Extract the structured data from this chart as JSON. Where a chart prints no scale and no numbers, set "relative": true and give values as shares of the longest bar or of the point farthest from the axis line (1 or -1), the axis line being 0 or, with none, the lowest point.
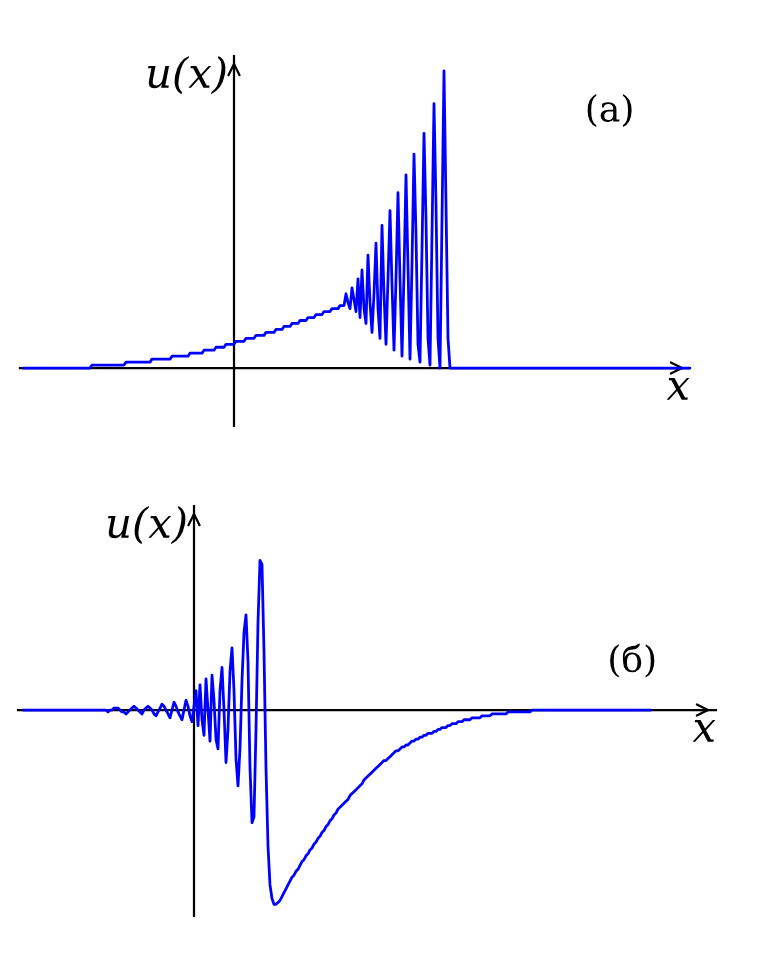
{
  "chart_data": [
    {
      "type": "line",
      "relative": true,
      "xlabel": "x",
      "ylabel": "u(x)",
      "annotations": [
        "(а)"
      ],
      "categories": [
        null,
        null,
        null,
        null,
        null,
        null,
        null,
        null,
        null,
        null,
        null,
        null,
        null,
        null,
        null,
        null,
        null,
        null,
        null,
        null,
        null,
        null,
        null,
        null,
        null,
        null,
        null,
        null,
        null,
        null,
        null,
        null,
        null,
        null,
        null,
        null,
        null,
        null,
        null,
        null,
        null,
        null,
        null,
        null,
        null,
        null,
        null,
        null,
        null,
        null,
        null,
        null,
        null,
        null,
        null,
        null,
        null,
        null,
        null,
        null,
        null,
        null,
        null,
        null,
        null,
        null,
        null,
        null,
        null,
        null,
        null,
        null,
        null,
        null,
        null,
        null,
        null,
        null,
        null,
        null,
        null,
        null,
        null,
        null,
        null,
        null,
        null,
        null,
        null,
        null,
        null,
        null,
        null,
        null,
        null,
        null,
        null,
        null,
        null,
        null,
        null,
        null,
        null,
        null,
        null,
        null,
        null,
        null,
        null,
        null,
        null,
        null,
        null,
        null,
        null,
        null,
        null,
        null,
        null,
        null,
        null,
        null,
        null,
        null,
        null,
        null,
        null,
        null,
        null,
        null,
        null,
        null,
        null,
        null,
        null,
        null,
        null,
        null,
        null,
        null,
        null,
        null,
        null,
        null,
        null,
        null,
        null,
        null,
        null,
        null,
        null,
        null,
        null,
        null,
        null,
        null,
        null,
        null,
        null,
        null,
        null,
        null,
        null,
        null,
        null,
        null,
        null,
        null,
        null,
        null,
        null,
        null,
        null,
        null,
        null,
        null,
        null,
        null,
        null,
        null,
        null,
        null,
        null,
        null,
        null,
        null,
        null,
        null,
        null,
        null,
        null,
        null,
        null,
        null,
        null,
        null,
        null,
        null,
        null,
        null,
        null,
        null,
        null,
        null,
        null,
        null,
        null,
        null,
        null,
        null,
        null,
        null,
        null,
        null,
        null,
        null,
        null,
        null,
        null,
        null,
        null,
        null,
        null,
        null,
        null,
        null,
        null,
        null,
        null,
        null,
        null,
        null,
        null,
        null,
        null,
        null,
        null,
        null,
        null,
        null,
        null,
        null,
        null,
        null,
        null,
        null,
        null,
        null,
        null,
        null,
        null,
        null,
        null,
        null,
        null,
        null,
        null,
        null,
        null,
        null,
        null,
        null,
        null,
        null,
        null,
        null,
        null,
        null,
        null,
        null,
        null,
        null,
        null,
        null,
        null,
        null,
        null,
        null,
        null,
        null,
        null,
        null,
        null,
        null,
        null,
        null,
        null,
        null,
        null,
        null,
        null,
        null,
        null,
        null,
        null,
        null,
        null,
        null,
        null,
        null,
        null,
        null,
        null,
        null,
        null,
        null,
        null,
        null,
        null,
        null,
        null,
        null,
        null,
        null,
        null,
        null,
        null,
        null,
        null,
        null,
        null,
        null,
        null,
        null,
        null,
        null,
        null,
        null,
        null,
        null,
        null,
        null,
        null,
        null
      ],
      "series": [
        {
          "color": "#0000ff",
          "values": [
            0,
            0,
            0,
            0,
            0,
            0,
            0,
            0,
            0,
            0,
            0,
            0,
            0,
            0,
            0,
            0,
            0,
            0,
            0,
            0,
            0,
            0,
            0,
            0,
            0,
            0,
            0,
            0,
            0,
            0,
            0,
            0,
            0,
            0,
            0.01,
            0.01,
            0.01,
            0.01,
            0.01,
            0.01,
            0.01,
            0.01,
            0.01,
            0.01,
            0.01,
            0.01,
            0.01,
            0.01,
            0.01,
            0.01,
            0.01,
            0.02,
            0.02,
            0.02,
            0.02,
            0.02,
            0.02,
            0.02,
            0.02,
            0.02,
            0.02,
            0.02,
            0.02,
            0.02,
            0.03,
            0.03,
            0.03,
            0.03,
            0.03,
            0.03,
            0.03,
            0.03,
            0.03,
            0.03,
            0.04,
            0.04,
            0.04,
            0.04,
            0.04,
            0.04,
            0.04,
            0.04,
            0.04,
            0.05,
            0.05,
            0.05,
            0.05,
            0.05,
            0.05,
            0.05,
            0.06,
            0.06,
            0.06,
            0.06,
            0.06,
            0.06,
            0.07,
            0.07,
            0.07,
            0.07,
            0.07,
            0.08,
            0.08,
            0.08,
            0.08,
            0.08,
            0.09,
            0.09,
            0.09,
            0.09,
            0.09,
            0.1,
            0.1,
            0.1,
            0.1,
            0.1,
            0.11,
            0.11,
            0.11,
            0.11,
            0.11,
            0.12,
            0.12,
            0.12,
            0.12,
            0.12,
            0.13,
            0.13,
            0.13,
            0.13,
            0.14,
            0.14,
            0.14,
            0.14,
            0.15,
            0.15,
            0.15,
            0.15,
            0.16,
            0.16,
            0.16,
            0.16,
            0.17,
            0.17,
            0.17,
            0.17,
            0.18,
            0.18,
            0.18,
            0.18,
            0.19,
            0.19,
            0.19,
            0.19,
            0.2,
            0.2,
            0.2,
            0.2,
            0.21,
            0.21,
            0.21,
            0.25,
            0.22,
            0.2,
            0.27,
            0.23,
            0.19,
            0.3,
            0.17,
            0.33,
            0.2,
            0.15,
            0.38,
            0.22,
            0.12,
            0.25,
            0.42,
            0.2,
            0.1,
            0.48,
            0.25,
            0.08,
            0.3,
            0.53,
            0.28,
            0.06,
            0.3,
            0.59,
            0.3,
            0.04,
            0.32,
            0.65,
            0.34,
            0.03,
            0.35,
            0.72,
            0.45,
            0.08,
            0.02,
            0.4,
            0.79,
            0.5,
            0.1,
            0.01,
            0.45,
            0.89,
            0.55,
            0.1,
            0,
            0.5,
            1.0,
            0.55,
            0.1,
            0,
            0,
            0,
            0,
            0,
            0,
            0,
            0,
            0,
            0,
            0,
            0,
            0,
            0,
            0,
            0,
            0,
            0,
            0,
            0,
            0,
            0,
            0,
            0,
            0,
            0,
            0,
            0,
            0,
            0,
            0,
            0,
            0,
            0,
            0,
            0,
            0,
            0,
            0,
            0,
            0,
            0,
            0,
            0,
            0,
            0,
            0,
            0,
            0,
            0,
            0,
            0,
            0,
            0,
            0,
            0,
            0,
            0,
            0,
            0,
            0,
            0,
            0,
            0,
            0,
            0,
            0,
            0,
            0,
            0,
            0,
            0,
            0,
            0,
            0,
            0,
            0,
            0,
            0,
            0,
            0,
            0,
            0,
            0,
            0,
            0,
            0,
            0,
            0,
            0,
            0,
            0,
            0,
            0,
            0,
            0,
            0,
            0,
            0,
            0,
            0,
            0,
            0,
            0,
            0,
            0,
            0,
            0,
            0,
            0,
            0,
            0,
            0,
            0,
            0,
            0,
            0,
            0,
            0,
            0,
            0
          ]
        }
      ]
    },
    {
      "type": "line",
      "relative": true,
      "xlabel": "x",
      "ylabel": "u(x)",
      "annotations": [
        "(б)"
      ],
      "categories": [
        null,
        null,
        null,
        null,
        null,
        null,
        null,
        null,
        null,
        null,
        null,
        null,
        null,
        null,
        null,
        null,
        null,
        null,
        null,
        null,
        null,
        null,
        null,
        null,
        null,
        null,
        null,
        null,
        null,
        null,
        null,
        null,
        null,
        null,
        null,
        null,
        null,
        null,
        null,
        null,
        null,
        null,
        null,
        null,
        null,
        null,
        null,
        null,
        null,
        null,
        null,
        null,
        null,
        null,
        null,
        null,
        null,
        null,
        null,
        null,
        null,
        null,
        null,
        null,
        null,
        null,
        null,
        null,
        null,
        null,
        null,
        null,
        null,
        null,
        null,
        null,
        null,
        null,
        null,
        null,
        null,
        null,
        null,
        null,
        null,
        null,
        null,
        null,
        null,
        null,
        null,
        null,
        null,
        null,
        null,
        null,
        null,
        null,
        null,
        null,
        null,
        null,
        null,
        null,
        null,
        null,
        null,
        null,
        null,
        null,
        null,
        null,
        null,
        null,
        null,
        null,
        null,
        null,
        null,
        null,
        null,
        null,
        null,
        null,
        null,
        null,
        null,
        null,
        null,
        null,
        null,
        null,
        null,
        null,
        null,
        null,
        null,
        null,
        null,
        null,
        null,
        null,
        null,
        null,
        null,
        null,
        null,
        null,
        null,
        null,
        null,
        null,
        null,
        null,
        null,
        null,
        null,
        null,
        null,
        null,
        null,
        null,
        null,
        null,
        null,
        null,
        null,
        null,
        null,
        null,
        null,
        null,
        null,
        null,
        null,
        null,
        null,
        null,
        null,
        null,
        null,
        null,
        null,
        null,
        null,
        null,
        null,
        null,
        null,
        null,
        null,
        null,
        null,
        null,
        null,
        null,
        null,
        null,
        null,
        null,
        null,
        null,
        null,
        null,
        null,
        null,
        null,
        null,
        null,
        null,
        null,
        null,
        null,
        null,
        null,
        null,
        null,
        null,
        null,
        null,
        null,
        null,
        null,
        null,
        null,
        null,
        null,
        null,
        null,
        null,
        null,
        null,
        null,
        null,
        null,
        null,
        null,
        null,
        null,
        null,
        null,
        null,
        null,
        null,
        null,
        null,
        null,
        null,
        null,
        null,
        null,
        null,
        null,
        null,
        null,
        null,
        null,
        null,
        null,
        null,
        null,
        null,
        null,
        null,
        null,
        null,
        null,
        null,
        null,
        null,
        null,
        null,
        null,
        null,
        null,
        null,
        null,
        null,
        null,
        null,
        null,
        null,
        null,
        null,
        null,
        null,
        null,
        null,
        null,
        null,
        null,
        null,
        null,
        null,
        null,
        null,
        null,
        null,
        null,
        null,
        null,
        null,
        null,
        null,
        null,
        null,
        null,
        null,
        null,
        null,
        null,
        null,
        null,
        null
      ],
      "series": [
        {
          "color": "#0000ff",
          "values": [
            0,
            0,
            0,
            0,
            0,
            0,
            0,
            0,
            0,
            0,
            0,
            0,
            0,
            0,
            0,
            0,
            0,
            0,
            0,
            0,
            0,
            0,
            0,
            0,
            0,
            0,
            0,
            0,
            0,
            0,
            0,
            0,
            0,
            0,
            0,
            0,
            0,
            0,
            0,
            0,
            0,
            0,
            -0.01,
            0,
            0,
            0.01,
            0.01,
            0.01,
            0,
            -0.01,
            -0.01,
            -0.02,
            -0.01,
            0,
            0.01,
            0.02,
            0.01,
            0,
            -0.01,
            -0.02,
            0,
            0.01,
            0.02,
            0.01,
            0,
            -0.02,
            -0.03,
            -0.01,
            0.01,
            0.03,
            0.02,
            0,
            -0.02,
            -0.04,
            0,
            0.04,
            0.02,
            -0.01,
            -0.03,
            -0.05,
            0,
            0.05,
            0.02,
            -0.03,
            -0.06,
            0.02,
            0.1,
            -0.08,
            0.13,
            -0.05,
            -0.13,
            0.16,
            0,
            -0.16,
            0.18,
            0.05,
            -0.15,
            -0.2,
            0.1,
            0.22,
            0,
            -0.27,
            -0.1,
            0.2,
            0.32,
            0.1,
            -0.25,
            -0.39,
            -0.2,
            0.15,
            0.4,
            0.49,
            0.25,
            -0.3,
            -0.58,
            -0.55,
            -0.1,
            0.45,
            0.77,
            0.75,
            0.3,
            -0.3,
            -0.7,
            -0.9,
            -0.97,
            -1.0,
            -1.0,
            -0.99,
            -0.98,
            -0.96,
            -0.94,
            -0.92,
            -0.9,
            -0.88,
            -0.86,
            -0.85,
            -0.83,
            -0.82,
            -0.8,
            -0.78,
            -0.77,
            -0.75,
            -0.74,
            -0.72,
            -0.71,
            -0.69,
            -0.68,
            -0.66,
            -0.65,
            -0.63,
            -0.62,
            -0.6,
            -0.59,
            -0.57,
            -0.56,
            -0.54,
            -0.53,
            -0.51,
            -0.5,
            -0.49,
            -0.48,
            -0.47,
            -0.46,
            -0.44,
            -0.43,
            -0.42,
            -0.41,
            -0.4,
            -0.39,
            -0.38,
            -0.36,
            -0.35,
            -0.34,
            -0.33,
            -0.32,
            -0.31,
            -0.3,
            -0.29,
            -0.28,
            -0.27,
            -0.26,
            -0.26,
            -0.25,
            -0.24,
            -0.23,
            -0.22,
            -0.21,
            -0.21,
            -0.2,
            -0.19,
            -0.19,
            -0.18,
            -0.18,
            -0.17,
            -0.16,
            -0.16,
            -0.15,
            -0.15,
            -0.14,
            -0.14,
            -0.13,
            -0.13,
            -0.12,
            -0.12,
            -0.12,
            -0.11,
            -0.11,
            -0.1,
            -0.1,
            -0.09,
            -0.09,
            -0.09,
            -0.08,
            -0.08,
            -0.07,
            -0.07,
            -0.07,
            -0.06,
            -0.06,
            -0.06,
            -0.05,
            -0.05,
            -0.05,
            -0.05,
            -0.04,
            -0.04,
            -0.04,
            -0.04,
            -0.04,
            -0.03,
            -0.03,
            -0.03,
            -0.03,
            -0.03,
            -0.02,
            -0.02,
            -0.02,
            -0.02,
            -0.02,
            -0.02,
            -0.02,
            -0.02,
            -0.01,
            -0.01,
            -0.01,
            -0.01,
            -0.01,
            -0.01,
            -0.01,
            -0.01,
            -0.01,
            -0.01,
            -0.01,
            -0.01,
            0,
            0,
            0,
            0,
            0,
            0,
            0,
            0,
            0,
            0,
            0,
            0,
            0,
            0,
            0,
            0,
            0,
            0,
            0,
            0,
            0,
            0,
            0,
            0,
            0,
            0,
            0,
            0,
            0,
            0,
            0,
            0,
            0,
            0,
            0,
            0,
            0,
            0,
            0,
            0,
            0,
            0,
            0,
            0,
            0,
            0,
            0,
            0,
            0,
            0,
            0,
            0,
            0,
            0,
            0,
            0,
            0,
            0,
            0,
            0
          ]
        }
      ]
    }
  ]
}
